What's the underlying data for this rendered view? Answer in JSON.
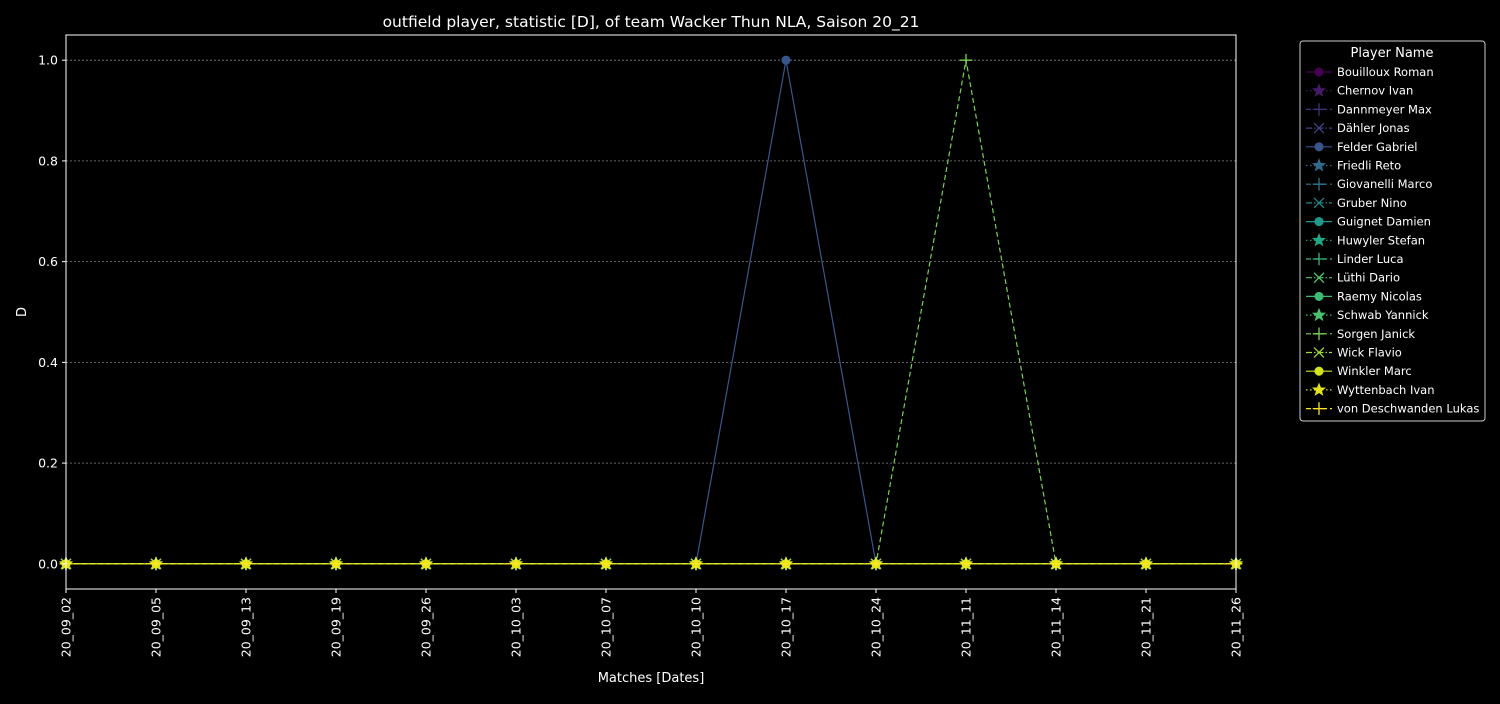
{
  "chart_data": {
    "type": "line",
    "title": "outfield player, statistic [D], of team Wacker Thun NLA, Saison 20_21",
    "xlabel": "Matches [Dates]",
    "ylabel": "D",
    "categories": [
      "20_09_02",
      "20_09_05",
      "20_09_13",
      "20_09_19",
      "20_09_26",
      "20_10_03",
      "20_10_07",
      "20_10_10",
      "20_10_17",
      "20_10_24",
      "20_11_11",
      "20_11_14",
      "20_11_21",
      "20_11_26"
    ],
    "ylim": [
      -0.05,
      1.05
    ],
    "yticks": [
      "0.0",
      "0.2",
      "0.4",
      "0.6",
      "0.8",
      "1.0"
    ],
    "grid": true,
    "background": "#000000",
    "legend": {
      "title": "Player Name",
      "placement": "outside-right-top"
    },
    "series": [
      {
        "name": "Bouilloux Roman",
        "color": "#440154",
        "marker": "circle",
        "dash": "solid",
        "values": [
          0,
          0,
          0,
          0,
          0,
          0,
          0,
          0,
          0,
          0,
          0,
          0,
          0,
          0
        ]
      },
      {
        "name": "Chernov Ivan",
        "color": "#481a6c",
        "marker": "star",
        "dash": "dotted",
        "values": [
          0,
          0,
          0,
          0,
          0,
          0,
          0,
          0,
          0,
          0,
          0,
          0,
          0,
          0
        ]
      },
      {
        "name": "Dannmeyer Max",
        "color": "#472f7d",
        "marker": "plus",
        "dash": "dashed",
        "values": [
          0,
          0,
          0,
          0,
          0,
          0,
          0,
          0,
          0,
          0,
          0,
          0,
          0,
          0
        ]
      },
      {
        "name": "Dähler Jonas",
        "color": "#414487",
        "marker": "x",
        "dash": "dashdot",
        "values": [
          0,
          0,
          0,
          0,
          0,
          0,
          0,
          0,
          0,
          0,
          0,
          0,
          0,
          0
        ]
      },
      {
        "name": "Felder Gabriel",
        "color": "#39568c",
        "marker": "circle",
        "dash": "solid",
        "values": [
          0,
          0,
          0,
          0,
          0,
          0,
          0,
          0,
          1,
          0,
          0,
          0,
          0,
          0
        ]
      },
      {
        "name": "Friedli Reto",
        "color": "#31688e",
        "marker": "star",
        "dash": "dotted",
        "values": [
          0,
          0,
          0,
          0,
          0,
          0,
          0,
          0,
          0,
          0,
          0,
          0,
          0,
          0
        ]
      },
      {
        "name": "Giovanelli Marco",
        "color": "#2a788e",
        "marker": "plus",
        "dash": "dashed",
        "values": [
          0,
          0,
          0,
          0,
          0,
          0,
          0,
          0,
          0,
          0,
          0,
          0,
          0,
          0
        ]
      },
      {
        "name": "Gruber Nino",
        "color": "#23888e",
        "marker": "x",
        "dash": "dashdot",
        "values": [
          0,
          0,
          0,
          0,
          0,
          0,
          0,
          0,
          0,
          0,
          0,
          0,
          0,
          0
        ]
      },
      {
        "name": "Guignet Damien",
        "color": "#1f988b",
        "marker": "circle",
        "dash": "solid",
        "values": [
          0,
          0,
          0,
          0,
          0,
          0,
          0,
          0,
          0,
          0,
          0,
          0,
          0,
          0
        ]
      },
      {
        "name": "Huwyler Stefan",
        "color": "#22a884",
        "marker": "star",
        "dash": "dotted",
        "values": [
          0,
          0,
          0,
          0,
          0,
          0,
          0,
          0,
          0,
          0,
          0,
          0,
          0,
          0
        ]
      },
      {
        "name": "Linder Luca",
        "color": "#35b779",
        "marker": "plus",
        "dash": "dashed",
        "values": [
          0,
          0,
          0,
          0,
          0,
          0,
          0,
          0,
          0,
          0,
          0,
          0,
          0,
          0
        ]
      },
      {
        "name": "Lüthi Dario",
        "color": "#54c568",
        "marker": "x",
        "dash": "dashdot",
        "values": [
          0,
          0,
          0,
          0,
          0,
          0,
          0,
          0,
          0,
          0,
          0,
          0,
          0,
          0
        ]
      },
      {
        "name": "Raemy Nicolas",
        "color": "#3bbb75",
        "marker": "circle",
        "dash": "solid",
        "values": [
          0,
          0,
          0,
          0,
          0,
          0,
          0,
          0,
          0,
          0,
          0,
          0,
          0,
          0
        ]
      },
      {
        "name": "Schwab Yannick",
        "color": "#4ac16d",
        "marker": "star",
        "dash": "dotted",
        "values": [
          0,
          0,
          0,
          0,
          0,
          0,
          0,
          0,
          0,
          0,
          0,
          0,
          0,
          0
        ]
      },
      {
        "name": "Sorgen Janick",
        "color": "#7ad151",
        "marker": "plus",
        "dash": "dashed",
        "values": [
          0,
          0,
          0,
          0,
          0,
          0,
          0,
          0,
          0,
          0,
          1,
          0,
          0,
          0
        ]
      },
      {
        "name": "Wick Flavio",
        "color": "#a5db36",
        "marker": "x",
        "dash": "dashdot",
        "values": [
          0,
          0,
          0,
          0,
          0,
          0,
          0,
          0,
          0,
          0,
          0,
          0,
          0,
          0
        ]
      },
      {
        "name": "Winkler Marc",
        "color": "#d2e21b",
        "marker": "circle",
        "dash": "solid",
        "values": [
          0,
          0,
          0,
          0,
          0,
          0,
          0,
          0,
          0,
          0,
          0,
          0,
          0,
          0
        ]
      },
      {
        "name": "Wyttenbach Ivan",
        "color": "#e5e419",
        "marker": "star",
        "dash": "dotted",
        "values": [
          0,
          0,
          0,
          0,
          0,
          0,
          0,
          0,
          0,
          0,
          0,
          0,
          0,
          0
        ]
      },
      {
        "name": "von Deschwanden Lukas",
        "color": "#fde725",
        "marker": "plus",
        "dash": "dashed",
        "values": [
          0,
          0,
          0,
          0,
          0,
          0,
          0,
          0,
          0,
          0,
          0,
          0,
          0,
          0
        ]
      }
    ]
  }
}
